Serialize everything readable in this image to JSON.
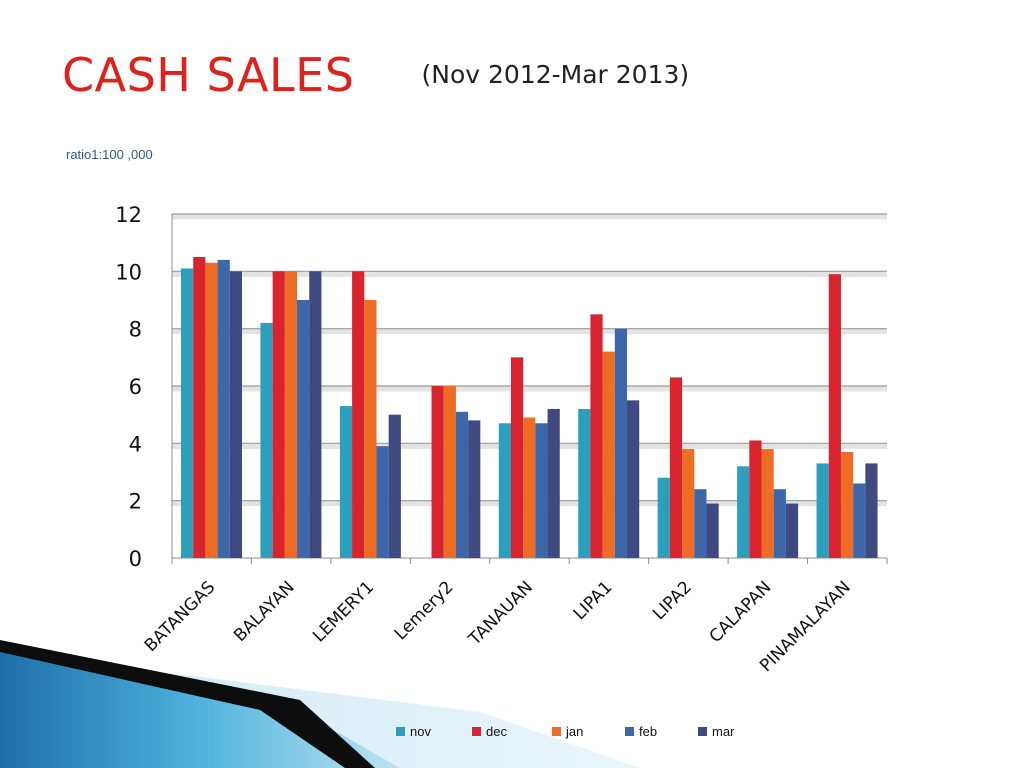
{
  "slide": {
    "title": "CASH SALES",
    "subtitle": "(Nov  2012-Mar 2013)",
    "note": "ratio1:100 ,000"
  },
  "chart_data": {
    "type": "bar",
    "categories": [
      "BATANGAS",
      "BALAYAN",
      "LEMERY1",
      "Lemery2",
      "TANAUAN",
      "LIPA1",
      "LIPA2",
      "CALAPAN",
      "PINAMALAYAN"
    ],
    "series": [
      {
        "name": "nov",
        "color": "#2ba0bd",
        "values": [
          10.1,
          8.2,
          5.3,
          null,
          4.7,
          5.2,
          2.8,
          3.2,
          3.3
        ]
      },
      {
        "name": "dec",
        "color": "#d9232e",
        "values": [
          10.5,
          10.0,
          10.0,
          6.0,
          7.0,
          8.5,
          6.3,
          4.1,
          9.9
        ]
      },
      {
        "name": "jan",
        "color": "#ee6d23",
        "values": [
          10.3,
          10.0,
          9.0,
          6.0,
          4.9,
          7.2,
          3.8,
          3.8,
          3.7
        ]
      },
      {
        "name": "feb",
        "color": "#3c67a8",
        "values": [
          10.4,
          9.0,
          3.9,
          5.1,
          4.7,
          8.0,
          2.4,
          2.4,
          2.6
        ]
      },
      {
        "name": "mar",
        "color": "#3f4a80",
        "values": [
          10.0,
          10.0,
          5.0,
          4.8,
          5.2,
          5.5,
          1.9,
          1.9,
          3.3
        ]
      }
    ],
    "yticks": [
      "0",
      "2",
      "4",
      "6",
      "8",
      "10",
      "12"
    ],
    "ylim": [
      0,
      12
    ],
    "grid": true,
    "legend_position": "bottom"
  }
}
